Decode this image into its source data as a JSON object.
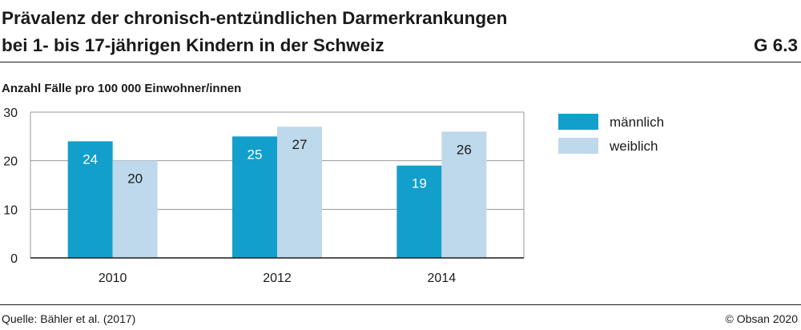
{
  "header": {
    "title_line1": "Prävalenz der chronisch-entzündlichen Darmerkrankungen",
    "title_line2": "bei 1- bis 17-jährigen Kindern in der Schweiz",
    "figure_id": "G 6.3"
  },
  "footer": {
    "source": "Quelle: Bähler et al. (2017)",
    "copyright": "© Obsan 2020"
  },
  "chart_data": {
    "type": "bar",
    "ylabel": "Anzahl Fälle pro 100 000 Einwohner/innen",
    "xlabel": "",
    "categories": [
      "2010",
      "2012",
      "2014"
    ],
    "series": [
      {
        "name": "männlich",
        "values": [
          24,
          25,
          19
        ],
        "color": "#139fcb"
      },
      {
        "name": "weiblich",
        "values": [
          20,
          27,
          26
        ],
        "color": "#bed9ec"
      }
    ],
    "ylim": [
      0,
      30
    ],
    "yticks": [
      0,
      10,
      20,
      30
    ],
    "grid": true,
    "legend": "top-right",
    "data_labels": true,
    "colors": {
      "gridline": "#9a9a9a",
      "axis": "#1a1a1a",
      "label_on_dark": "#ffffff",
      "label_on_light": "#1a1a1a"
    }
  }
}
